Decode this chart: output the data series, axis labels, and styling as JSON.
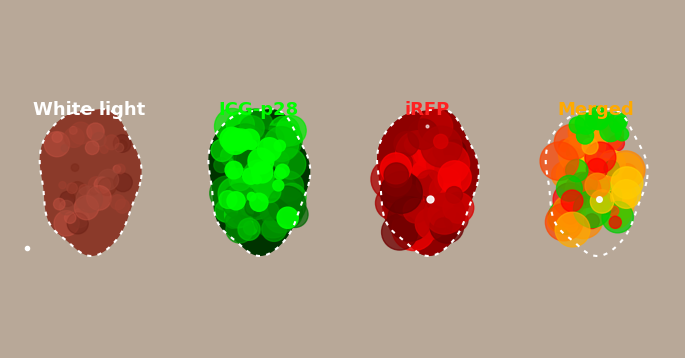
{
  "panels": [
    {
      "label": "White light",
      "label_color": "#ffffff",
      "bg_color": "#c8b8a0",
      "tumor_color_main": "#8B3A2A",
      "tumor_color_light": "#A04535",
      "panel_bg": "#b0a090"
    },
    {
      "label": "ICG-p28",
      "label_color": "#00ff00",
      "bg_color": "#000000",
      "tumor_color_main": "#00cc00",
      "tumor_color_light": "#00ff00"
    },
    {
      "label": "iRFP",
      "label_color": "#ff2222",
      "bg_color": "#000000",
      "tumor_color_main": "#cc0000",
      "tumor_color_light": "#ff0000"
    },
    {
      "label": "Merged",
      "label_color": "#ffaa00",
      "bg_color": "#000000",
      "tumor_color_main": "#cc6600",
      "tumor_color_light": "#ffcc00"
    }
  ],
  "title_fontsize": 13,
  "figure_bg": "#b0a090",
  "dpi": 100
}
